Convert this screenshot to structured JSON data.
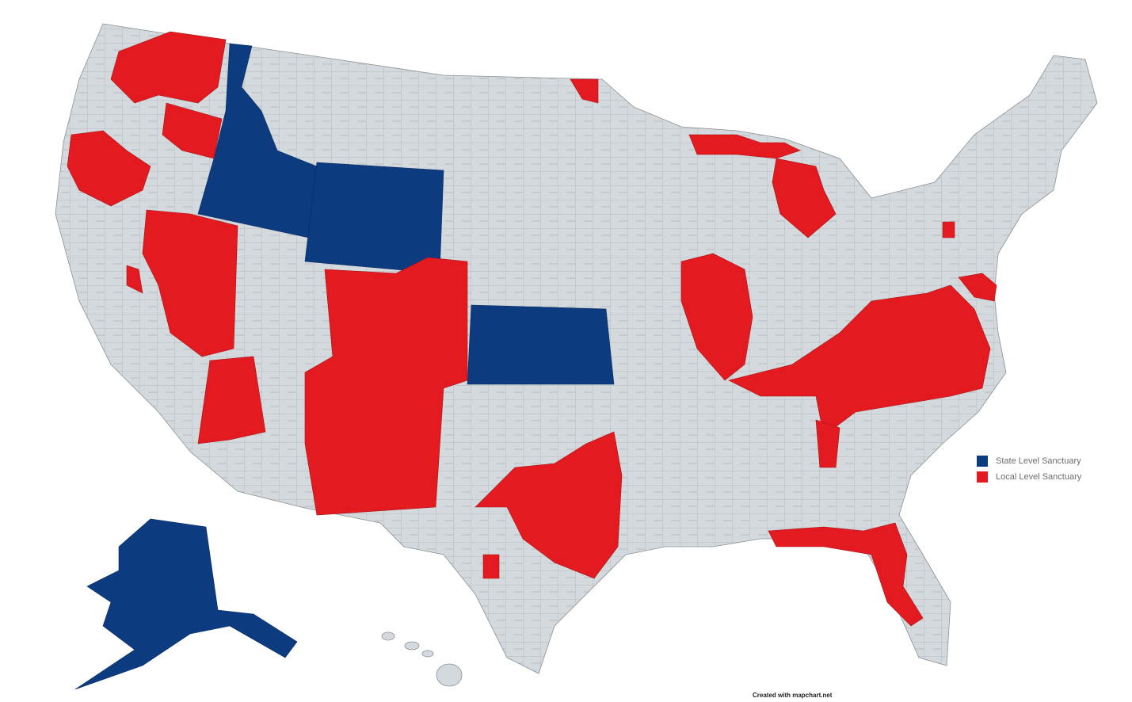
{
  "legend": {
    "items": [
      {
        "label": "State Level Sanctuary",
        "color": "#0d3b80"
      },
      {
        "label": "Local Level Sanctuary",
        "color": "#e31a1f"
      }
    ]
  },
  "credit": "Created with mapchart.net"
}
